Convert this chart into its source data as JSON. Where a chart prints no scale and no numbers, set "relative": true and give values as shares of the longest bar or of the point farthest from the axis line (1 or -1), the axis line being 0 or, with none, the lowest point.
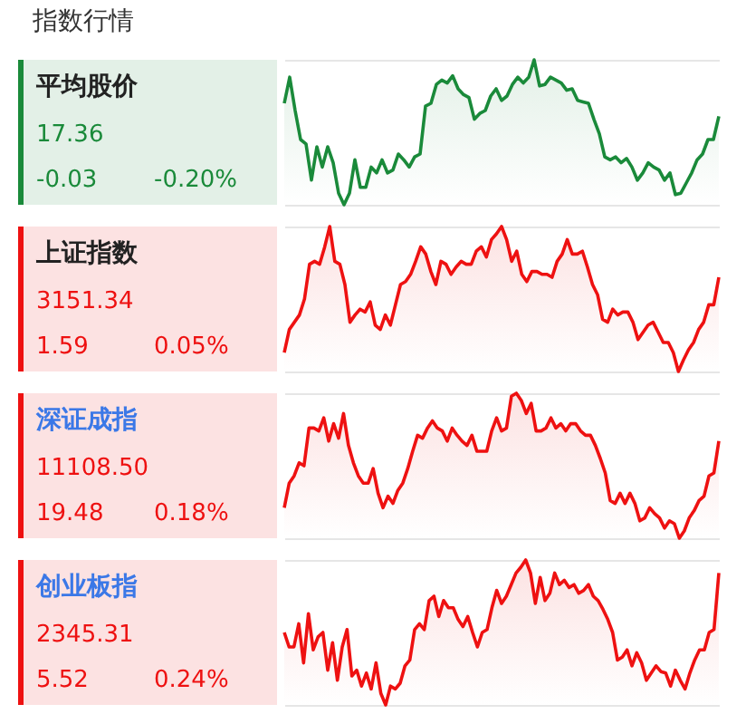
{
  "chart_data": [
    {
      "type": "other",
      "title": "指数行情"
    },
    {
      "type": "area",
      "title": "平均股价",
      "annotations": [
        "17.36",
        "-0.03",
        "-0.20%"
      ],
      "relative": true,
      "categories": [
        null,
        null,
        null,
        null,
        null,
        null,
        null,
        null,
        null,
        null,
        null,
        null,
        null,
        null,
        null,
        null,
        null,
        null,
        null,
        null,
        null,
        null,
        null,
        null,
        null,
        null,
        null,
        null,
        null,
        null,
        null,
        null,
        null,
        null,
        null,
        null,
        null,
        null,
        null,
        null,
        null,
        null,
        null,
        null,
        null,
        null,
        null,
        null,
        null,
        null,
        null,
        null,
        null,
        null,
        null,
        null,
        null,
        null,
        null,
        null,
        null,
        null,
        null,
        null,
        null,
        null,
        null,
        null,
        null,
        null,
        null,
        null,
        null,
        null,
        null,
        null,
        null,
        null,
        null,
        null,
        null
      ],
      "series": [
        {
          "color": "#1a8a3a",
          "values": [
            0.7,
            0.88,
            0.65,
            0.45,
            0.42,
            0.17,
            0.4,
            0.26,
            0.4,
            0.29,
            0.08,
            0,
            0.08,
            0.31,
            0.12,
            0.12,
            0.26,
            0.22,
            0.31,
            0.22,
            0.24,
            0.35,
            0.31,
            0.26,
            0.33,
            0.35,
            0.68,
            0.7,
            0.83,
            0.86,
            0.84,
            0.89,
            0.8,
            0.76,
            0.74,
            0.59,
            0.63,
            0.65,
            0.75,
            0.8,
            0.72,
            0.75,
            0.83,
            0.88,
            0.84,
            0.88,
            1,
            0.82,
            0.83,
            0.88,
            0.86,
            0.84,
            0.79,
            0.8,
            0.72,
            0.71,
            0.7,
            0.59,
            0.49,
            0.33,
            0.31,
            0.33,
            0.29,
            0.32,
            0.26,
            0.17,
            0.22,
            0.29,
            0.26,
            0.24,
            0.17,
            0.22,
            0.07,
            0.08,
            0.15,
            0.22,
            0.31,
            0.35,
            0.45,
            0.45,
            0.61
          ]
        }
      ]
    },
    {
      "type": "area",
      "title": "上证指数",
      "annotations": [
        "3151.34",
        "1.59",
        "0.05%"
      ],
      "relative": true,
      "categories": [
        null,
        null,
        null,
        null,
        null,
        null,
        null,
        null,
        null,
        null,
        null,
        null,
        null,
        null,
        null,
        null,
        null,
        null,
        null,
        null,
        null,
        null,
        null,
        null,
        null,
        null,
        null,
        null,
        null,
        null,
        null,
        null,
        null,
        null,
        null,
        null,
        null,
        null,
        null,
        null,
        null,
        null,
        null,
        null,
        null,
        null,
        null,
        null,
        null,
        null,
        null,
        null,
        null,
        null,
        null,
        null,
        null,
        null,
        null,
        null,
        null,
        null,
        null,
        null,
        null,
        null,
        null,
        null,
        null,
        null,
        null,
        null,
        null,
        null,
        null,
        null,
        null,
        null,
        null,
        null,
        null,
        null,
        null,
        null,
        null,
        null,
        null
      ],
      "series": [
        {
          "color": "#ee1111",
          "values": [
            0.13,
            0.29,
            0.34,
            0.39,
            0.5,
            0.74,
            0.76,
            0.74,
            0.86,
            1,
            0.76,
            0.74,
            0.6,
            0.34,
            0.39,
            0.43,
            0.41,
            0.48,
            0.32,
            0.29,
            0.39,
            0.32,
            0.46,
            0.6,
            0.62,
            0.67,
            0.76,
            0.86,
            0.81,
            0.69,
            0.6,
            0.76,
            0.74,
            0.67,
            0.72,
            0.76,
            0.74,
            0.74,
            0.83,
            0.86,
            0.79,
            0.91,
            0.95,
            1,
            0.91,
            0.76,
            0.83,
            0.67,
            0.62,
            0.69,
            0.69,
            0.67,
            0.67,
            0.65,
            0.76,
            0.81,
            0.91,
            0.81,
            0.81,
            0.83,
            0.72,
            0.6,
            0.53,
            0.36,
            0.34,
            0.43,
            0.39,
            0.41,
            0.41,
            0.34,
            0.22,
            0.27,
            0.32,
            0.34,
            0.27,
            0.2,
            0.2,
            0.13,
            0,
            0.08,
            0.15,
            0.2,
            0.29,
            0.34,
            0.46,
            0.46,
            0.65
          ]
        }
      ]
    },
    {
      "type": "area",
      "title": "深证成指",
      "annotations": [
        "11108.50",
        "19.48",
        "0.18%"
      ],
      "relative": true,
      "categories": [
        null,
        null,
        null,
        null,
        null,
        null,
        null,
        null,
        null,
        null,
        null,
        null,
        null,
        null,
        null,
        null,
        null,
        null,
        null,
        null,
        null,
        null,
        null,
        null,
        null,
        null,
        null,
        null,
        null,
        null,
        null,
        null,
        null,
        null,
        null,
        null,
        null,
        null,
        null,
        null,
        null,
        null,
        null,
        null,
        null,
        null,
        null,
        null,
        null,
        null,
        null,
        null,
        null,
        null,
        null,
        null,
        null,
        null,
        null,
        null,
        null,
        null,
        null,
        null,
        null,
        null,
        null,
        null,
        null,
        null,
        null,
        null,
        null,
        null,
        null,
        null,
        null,
        null,
        null,
        null,
        null,
        null,
        null,
        null,
        null,
        null,
        null,
        null,
        null
      ],
      "series": [
        {
          "color": "#ee1111",
          "values": [
            0.21,
            0.38,
            0.43,
            0.52,
            0.5,
            0.76,
            0.76,
            0.74,
            0.83,
            0.67,
            0.79,
            0.69,
            0.86,
            0.64,
            0.52,
            0.43,
            0.38,
            0.38,
            0.48,
            0.31,
            0.21,
            0.29,
            0.24,
            0.33,
            0.38,
            0.48,
            0.6,
            0.71,
            0.69,
            0.76,
            0.81,
            0.76,
            0.74,
            0.67,
            0.76,
            0.71,
            0.67,
            0.64,
            0.71,
            0.6,
            0.6,
            0.6,
            0.74,
            0.83,
            0.74,
            0.76,
            0.98,
            1,
            0.95,
            0.86,
            0.93,
            0.74,
            0.74,
            0.76,
            0.83,
            0.76,
            0.79,
            0.74,
            0.79,
            0.79,
            0.74,
            0.71,
            0.71,
            0.64,
            0.55,
            0.45,
            0.26,
            0.24,
            0.31,
            0.24,
            0.31,
            0.24,
            0.12,
            0.14,
            0.21,
            0.17,
            0.14,
            0.07,
            0.12,
            0.1,
            0,
            0.05,
            0.14,
            0.19,
            0.26,
            0.29,
            0.43,
            0.45,
            0.67
          ]
        }
      ]
    },
    {
      "type": "area",
      "title": "创业板指",
      "annotations": [
        "2345.31",
        "5.52",
        "0.24%"
      ],
      "relative": true,
      "categories": [
        null,
        null,
        null,
        null,
        null,
        null,
        null,
        null,
        null,
        null,
        null,
        null,
        null,
        null,
        null,
        null,
        null,
        null,
        null,
        null,
        null,
        null,
        null,
        null,
        null,
        null,
        null,
        null,
        null,
        null,
        null,
        null,
        null,
        null,
        null,
        null,
        null,
        null,
        null,
        null,
        null,
        null,
        null,
        null,
        null,
        null,
        null,
        null,
        null,
        null,
        null,
        null,
        null,
        null,
        null,
        null,
        null,
        null,
        null,
        null,
        null,
        null,
        null,
        null,
        null,
        null,
        null,
        null,
        null,
        null,
        null,
        null,
        null,
        null,
        null,
        null,
        null,
        null,
        null,
        null,
        null,
        null,
        null,
        null,
        null,
        null,
        null,
        null,
        null,
        null,
        null
      ],
      "series": [
        {
          "color": "#ee1111",
          "values": [
            0.5,
            0.4,
            0.4,
            0.56,
            0.29,
            0.63,
            0.38,
            0.47,
            0.5,
            0.24,
            0.43,
            0.17,
            0.4,
            0.52,
            0.2,
            0.24,
            0.13,
            0.22,
            0.11,
            0.29,
            0.08,
            0,
            0.13,
            0.11,
            0.15,
            0.27,
            0.31,
            0.52,
            0.56,
            0.52,
            0.72,
            0.75,
            0.61,
            0.72,
            0.67,
            0.67,
            0.59,
            0.54,
            0.61,
            0.5,
            0.4,
            0.5,
            0.52,
            0.67,
            0.79,
            0.7,
            0.75,
            0.83,
            0.91,
            0.95,
            1,
            0.91,
            0.7,
            0.88,
            0.72,
            0.77,
            0.91,
            0.83,
            0.86,
            0.81,
            0.83,
            0.77,
            0.79,
            0.83,
            0.75,
            0.72,
            0.66,
            0.59,
            0.5,
            0.31,
            0.33,
            0.38,
            0.27,
            0.36,
            0.29,
            0.17,
            0.22,
            0.27,
            0.23,
            0.22,
            0.13,
            0.24,
            0.17,
            0.11,
            0.22,
            0.31,
            0.38,
            0.38,
            0.5,
            0.52,
            0.91
          ]
        }
      ]
    }
  ]
}
